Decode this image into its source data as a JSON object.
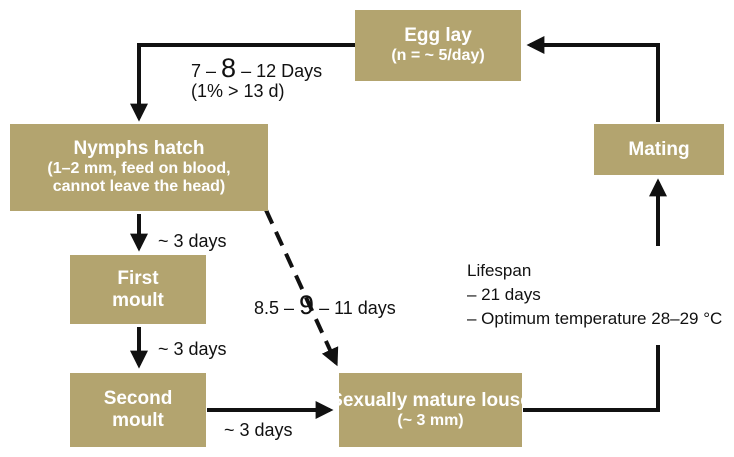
{
  "boxes": {
    "egg_lay": {
      "title": "Egg lay",
      "sub": "(n = ~ 5/day)"
    },
    "nymphs_hatch": {
      "title": "Nymphs hatch",
      "line2": "(1–2 mm, feed on blood,",
      "line3": "cannot leave the head)"
    },
    "first_moult": {
      "line1": "First",
      "line2": "moult"
    },
    "second_moult": {
      "line1": "Second",
      "line2": "moult"
    },
    "mature_louse": {
      "title": "Sexually mature louse",
      "sub": "(~ 3 mm)"
    },
    "mating": {
      "title": "Mating"
    }
  },
  "labels": {
    "egg_to_nymph": {
      "pre": "7 – ",
      "big": "8",
      "post": " – 12 Days",
      "line2": "(1% > 13 d)"
    },
    "nymph_to_first": "~ 3 days",
    "first_to_second": "~ 3 days",
    "second_to_mature": "~ 3 days",
    "nymph_to_mature": {
      "pre": "8.5 – ",
      "big": "9",
      "post": " – 11 days"
    }
  },
  "lifespan": {
    "heading": "Lifespan",
    "item1": "– 21 days",
    "item2": "– Optimum temperature 28–29 °C"
  },
  "colors": {
    "box": "#b3a46f",
    "box_text": "#ffffff",
    "arrow": "#111111"
  }
}
